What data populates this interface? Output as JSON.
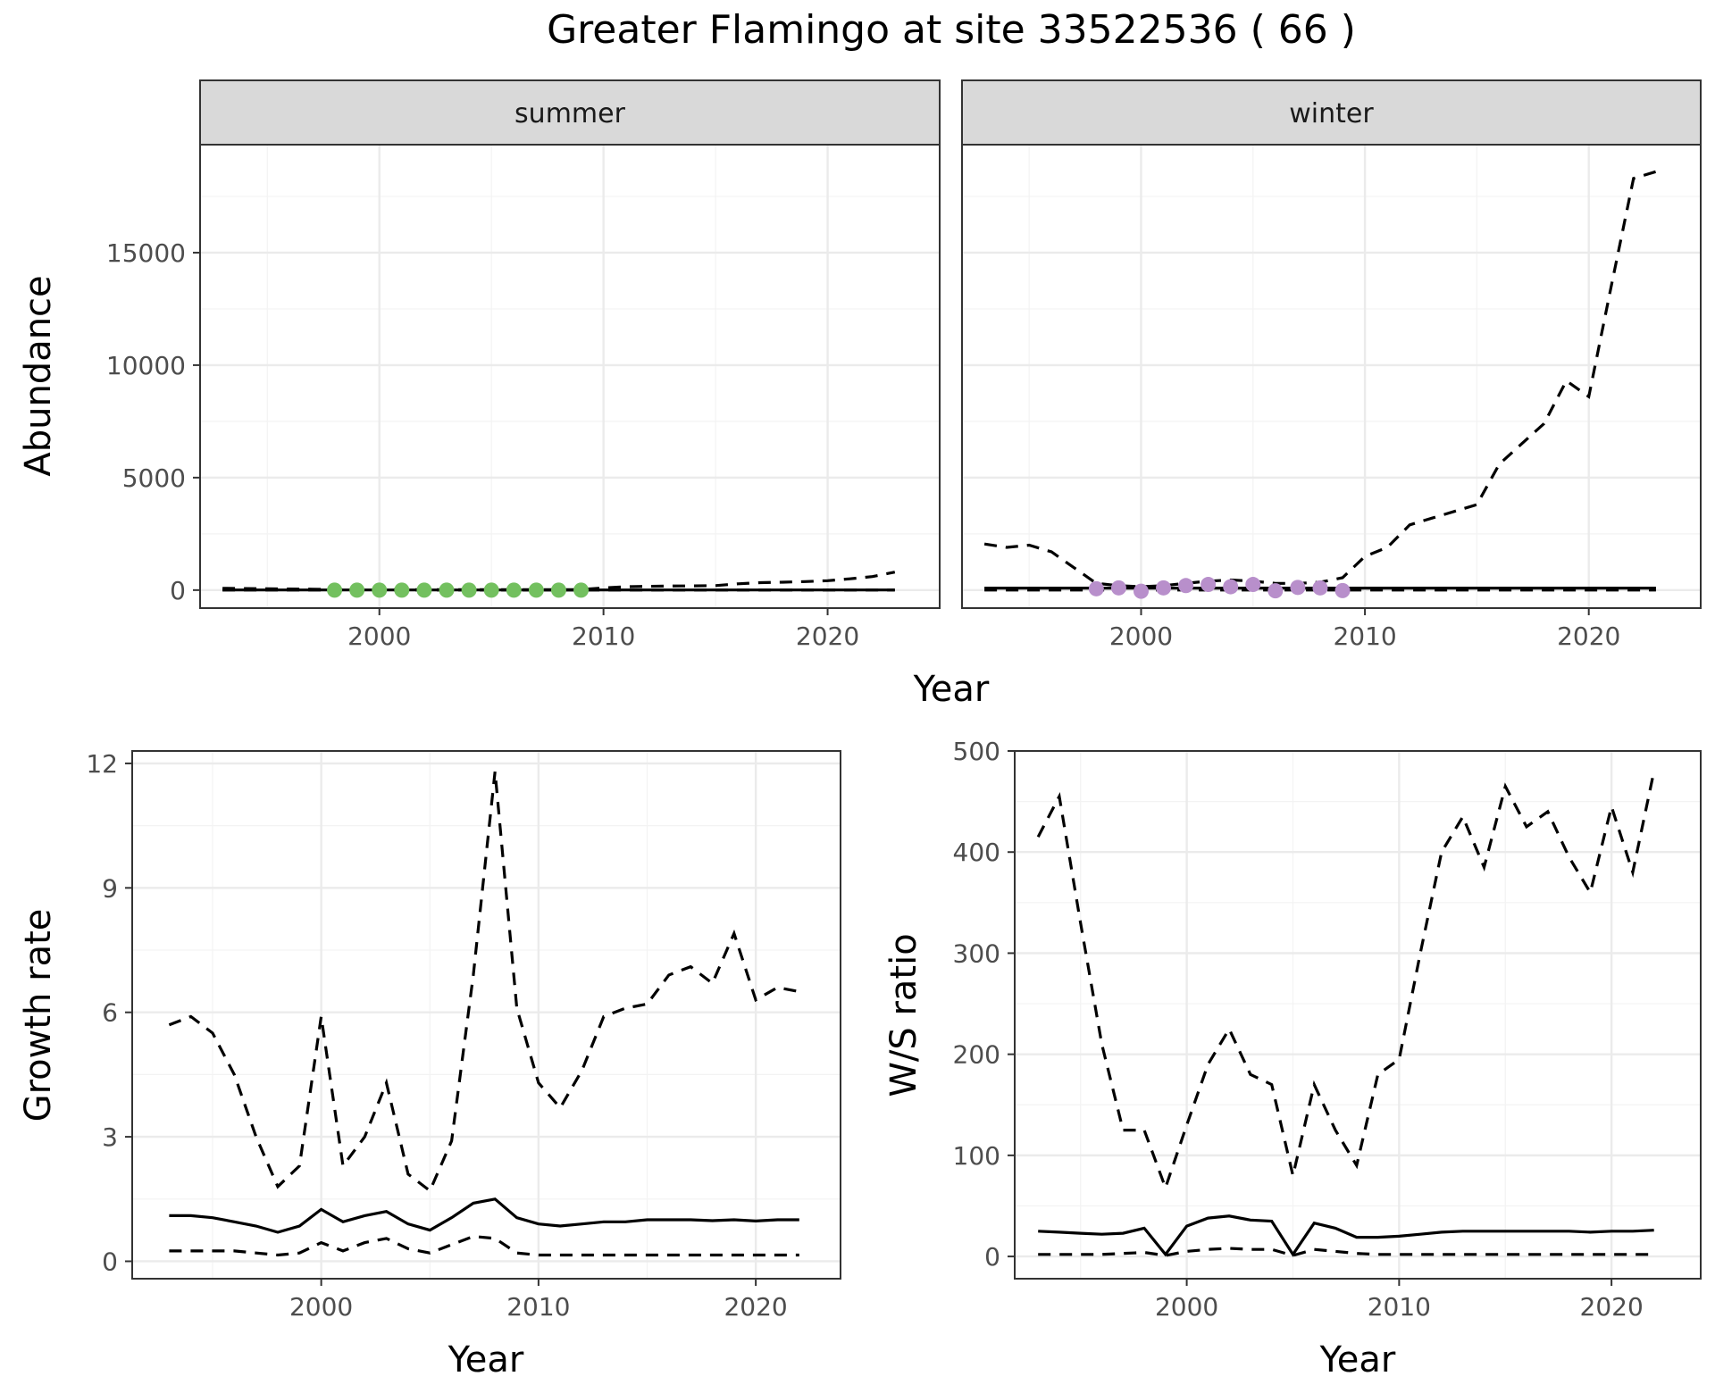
{
  "title": "Greater Flamingo at site 33522536 ( 66 )",
  "colors": {
    "summer_points": "#73c05f",
    "winter_points": "#b88fcb"
  },
  "chart_data": [
    {
      "type": "line",
      "panel": "summer",
      "facet_label": "summer",
      "xlabel": "Year",
      "ylabel": "Abundance",
      "xlim": [
        1992,
        2025
      ],
      "ylim": [
        -800,
        19800
      ],
      "xticks": [
        2000,
        2010,
        2020
      ],
      "yticks": [
        0,
        5000,
        10000,
        15000
      ],
      "ytick_labels": [
        "0",
        "5000",
        "10000",
        "15000"
      ],
      "x": [
        1993,
        1994,
        1995,
        1996,
        1997,
        1998,
        1999,
        2000,
        2001,
        2002,
        2003,
        2004,
        2005,
        2006,
        2007,
        2008,
        2009,
        2010,
        2011,
        2012,
        2013,
        2014,
        2015,
        2016,
        2017,
        2018,
        2019,
        2020,
        2021,
        2022,
        2023
      ],
      "series": [
        {
          "name": "",
          "style": "solid",
          "values": [
            5,
            5,
            5,
            5,
            5,
            5,
            5,
            5,
            5,
            5,
            5,
            5,
            5,
            5,
            5,
            5,
            5,
            5,
            5,
            5,
            5,
            5,
            5,
            5,
            5,
            5,
            5,
            5,
            5,
            5,
            5
          ]
        },
        {
          "name": "",
          "style": "dashed",
          "values": [
            80,
            70,
            60,
            50,
            40,
            30,
            20,
            20,
            20,
            20,
            20,
            20,
            20,
            20,
            20,
            20,
            20,
            100,
            150,
            170,
            180,
            190,
            200,
            280,
            330,
            350,
            380,
            420,
            500,
            600,
            800
          ]
        },
        {
          "name": "",
          "style": "dashed",
          "values": [
            0,
            0,
            0,
            0,
            0,
            0,
            0,
            0,
            0,
            0,
            0,
            0,
            0,
            0,
            0,
            0,
            0,
            0,
            0,
            0,
            0,
            0,
            0,
            0,
            0,
            0,
            0,
            0,
            0,
            0,
            0
          ]
        }
      ],
      "points": {
        "x": [
          1998,
          1999,
          2000,
          2001,
          2002,
          2003,
          2004,
          2005,
          2006,
          2007,
          2008,
          2009
        ],
        "y": [
          0,
          0,
          0,
          0,
          0,
          0,
          0,
          0,
          0,
          0,
          0,
          0
        ]
      }
    },
    {
      "type": "line",
      "panel": "winter",
      "facet_label": "winter",
      "xlabel": "Year",
      "ylabel": "Abundance",
      "xlim": [
        1992,
        2025
      ],
      "ylim": [
        -800,
        19800
      ],
      "xticks": [
        2000,
        2010,
        2020
      ],
      "yticks": [
        0,
        5000,
        10000,
        15000
      ],
      "x": [
        1993,
        1994,
        1995,
        1996,
        1997,
        1998,
        1999,
        2000,
        2001,
        2002,
        2003,
        2004,
        2005,
        2006,
        2007,
        2008,
        2009,
        2010,
        2011,
        2012,
        2013,
        2014,
        2015,
        2016,
        2017,
        2018,
        2019,
        2020,
        2021,
        2022,
        2023
      ],
      "series": [
        {
          "name": "",
          "style": "solid",
          "values": [
            90,
            90,
            90,
            90,
            90,
            90,
            90,
            90,
            90,
            90,
            90,
            90,
            90,
            90,
            90,
            90,
            90,
            90,
            90,
            90,
            90,
            90,
            90,
            90,
            90,
            90,
            90,
            90,
            90,
            90,
            90
          ]
        },
        {
          "name": "",
          "style": "dashed",
          "values": [
            2050,
            1900,
            2000,
            1700,
            1000,
            300,
            200,
            150,
            200,
            300,
            400,
            450,
            400,
            300,
            300,
            350,
            550,
            1500,
            1900,
            2900,
            3200,
            3500,
            3800,
            5600,
            6500,
            7400,
            9300,
            8600,
            13500,
            18300,
            18600
          ]
        },
        {
          "name": "",
          "style": "dashed",
          "values": [
            0,
            0,
            0,
            0,
            0,
            0,
            0,
            0,
            0,
            0,
            0,
            0,
            0,
            0,
            0,
            0,
            0,
            0,
            0,
            0,
            0,
            0,
            0,
            0,
            0,
            0,
            0,
            0,
            0,
            0,
            0
          ]
        }
      ],
      "points": {
        "x": [
          1998,
          1999,
          2000,
          2001,
          2002,
          2003,
          2004,
          2005,
          2006,
          2007,
          2008,
          2009
        ],
        "y": [
          60,
          100,
          -50,
          100,
          200,
          250,
          150,
          250,
          -30,
          120,
          100,
          -20
        ]
      }
    },
    {
      "type": "line",
      "panel": "growth",
      "xlabel": "Year",
      "ylabel": "Growth rate",
      "xlim": [
        1991.3,
        2023.9
      ],
      "ylim": [
        -0.42,
        12.3
      ],
      "xticks": [
        2000,
        2010,
        2020
      ],
      "yticks": [
        0,
        3,
        6,
        9,
        12
      ],
      "x": [
        1993,
        1994,
        1995,
        1996,
        1997,
        1998,
        1999,
        2000,
        2001,
        2002,
        2003,
        2004,
        2005,
        2006,
        2007,
        2008,
        2009,
        2010,
        2011,
        2012,
        2013,
        2014,
        2015,
        2016,
        2017,
        2018,
        2019,
        2020,
        2021,
        2022
      ],
      "series": [
        {
          "name": "",
          "style": "solid",
          "values": [
            1.1,
            1.1,
            1.05,
            0.95,
            0.85,
            0.7,
            0.85,
            1.25,
            0.95,
            1.1,
            1.2,
            0.9,
            0.75,
            1.05,
            1.4,
            1.5,
            1.05,
            0.9,
            0.85,
            0.9,
            0.95,
            0.95,
            1.0,
            1.0,
            1.0,
            0.98,
            1.0,
            0.97,
            1.0,
            1.0
          ]
        },
        {
          "name": "",
          "style": "dashed",
          "values": [
            5.7,
            5.9,
            5.5,
            4.5,
            3.0,
            1.8,
            2.3,
            5.9,
            2.3,
            3.0,
            4.3,
            2.1,
            1.7,
            2.9,
            6.9,
            11.8,
            6.1,
            4.3,
            3.7,
            4.6,
            5.9,
            6.1,
            6.2,
            6.9,
            7.1,
            6.7,
            7.9,
            6.3,
            6.6,
            6.5
          ]
        },
        {
          "name": "",
          "style": "dashed",
          "values": [
            0.25,
            0.25,
            0.25,
            0.25,
            0.2,
            0.15,
            0.2,
            0.45,
            0.25,
            0.45,
            0.55,
            0.3,
            0.2,
            0.4,
            0.6,
            0.55,
            0.2,
            0.15,
            0.15,
            0.15,
            0.15,
            0.15,
            0.15,
            0.15,
            0.15,
            0.15,
            0.15,
            0.15,
            0.15,
            0.15
          ]
        }
      ]
    },
    {
      "type": "line",
      "panel": "ratio",
      "xlabel": "Year",
      "ylabel": "W/S ratio",
      "xlim": [
        1991.9,
        2024.2
      ],
      "ylim": [
        -22,
        500
      ],
      "xticks": [
        2000,
        2010,
        2020
      ],
      "yticks": [
        0,
        100,
        200,
        300,
        400,
        500
      ],
      "x": [
        1993,
        1994,
        1995,
        1996,
        1997,
        1998,
        1999,
        2000,
        2001,
        2002,
        2003,
        2004,
        2005,
        2006,
        2007,
        2008,
        2009,
        2010,
        2011,
        2012,
        2013,
        2014,
        2015,
        2016,
        2017,
        2018,
        2019,
        2020,
        2021,
        2022
      ],
      "series": [
        {
          "name": "",
          "style": "solid",
          "values": [
            25,
            24,
            23,
            22,
            23,
            28,
            2,
            30,
            38,
            40,
            36,
            35,
            2,
            33,
            28,
            19,
            19,
            20,
            22,
            24,
            25,
            25,
            25,
            25,
            25,
            25,
            24,
            25,
            25,
            26
          ]
        },
        {
          "name": "",
          "style": "dashed",
          "values": [
            415,
            455,
            330,
            210,
            125,
            125,
            68,
            130,
            190,
            225,
            180,
            170,
            80,
            170,
            125,
            90,
            180,
            195,
            300,
            400,
            435,
            385,
            465,
            425,
            440,
            395,
            360,
            445,
            380,
            480
          ]
        },
        {
          "name": "",
          "style": "dashed",
          "values": [
            2,
            2,
            2,
            2,
            3,
            4,
            1,
            5,
            7,
            8,
            7,
            7,
            1,
            7,
            5,
            3,
            2,
            2,
            2,
            2,
            2,
            2,
            2,
            2,
            2,
            2,
            2,
            2,
            2,
            2
          ]
        }
      ]
    }
  ]
}
